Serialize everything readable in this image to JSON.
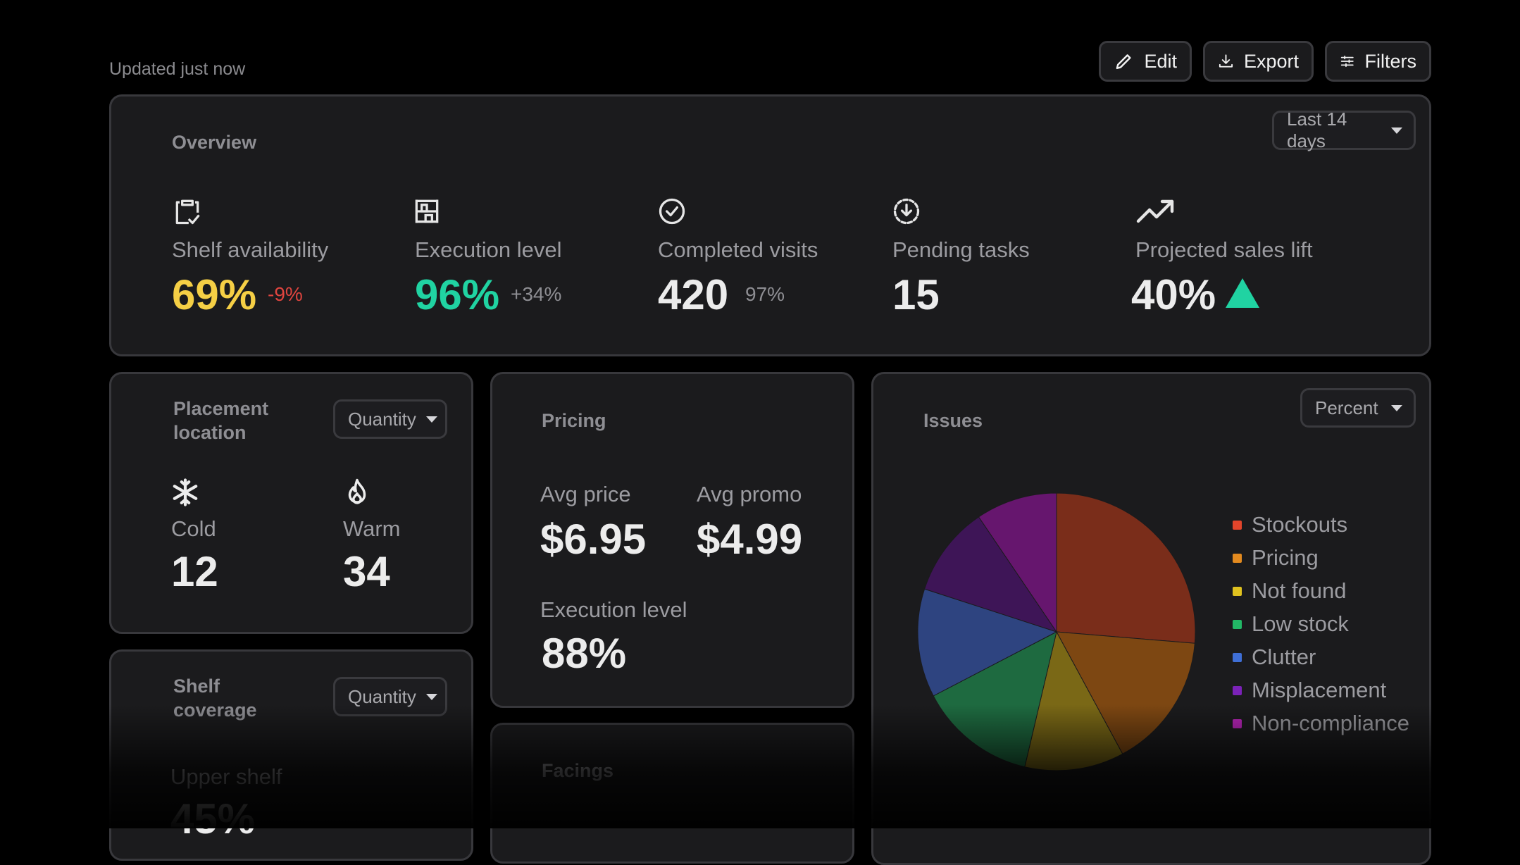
{
  "header": {
    "updated": "Updated just now",
    "edit_label": "Edit",
    "export_label": "Export",
    "filters_label": "Filters"
  },
  "overview": {
    "title": "Overview",
    "range": "Last 14 days",
    "metrics": [
      {
        "label": "Shelf availability",
        "value": "69%",
        "delta": "-9%",
        "icon": "clipboard-check-icon"
      },
      {
        "label": "Execution level",
        "value": "96%",
        "delta": "+34%",
        "icon": "shelves-icon"
      },
      {
        "label": "Completed visits",
        "value": "420",
        "delta": "97%",
        "icon": "check-circle-icon"
      },
      {
        "label": "Pending tasks",
        "value": "15",
        "icon": "download-circle-icon"
      },
      {
        "label": "Projected sales lift",
        "value": "40%",
        "icon": "trending-up-icon"
      }
    ]
  },
  "placement": {
    "title": "Placement location",
    "select": "Quantity",
    "cold_label": "Cold",
    "cold_value": "12",
    "warm_label": "Warm",
    "warm_value": "34"
  },
  "pricing": {
    "title": "Pricing",
    "avg_price_label": "Avg price",
    "avg_price": "$6.95",
    "avg_promo_label": "Avg promo",
    "avg_promo": "$4.99",
    "execution_label": "Execution level",
    "execution_value": "88%"
  },
  "shelf_coverage": {
    "title": "Shelf coverage",
    "select": "Quantity",
    "upper_label": "Upper shelf",
    "upper_value": "45%"
  },
  "facings": {
    "title": "Facings"
  },
  "issues": {
    "title": "Issues",
    "select": "Percent"
  },
  "colors": {
    "yellow": "#f5cf45",
    "green": "#20d3a2",
    "red": "#e0453f"
  },
  "chart_data": {
    "type": "pie",
    "title": "Issues",
    "categories": [
      "Stockouts",
      "Pricing",
      "Not found",
      "Low stock",
      "Clutter",
      "Misplacement",
      "Non-compliance"
    ],
    "values": [
      25,
      15,
      11,
      13,
      12,
      10,
      9
    ],
    "colors": [
      "#7a2d1a",
      "#7d4712",
      "#7a6816",
      "#1e6a40",
      "#2e4480",
      "#3e1557",
      "#66166e"
    ],
    "legend_colors": [
      "#e2452b",
      "#e38a1f",
      "#e0c21f",
      "#22b866",
      "#3f6fd6",
      "#7b22b8",
      "#b524b5"
    ],
    "legend": "right"
  }
}
